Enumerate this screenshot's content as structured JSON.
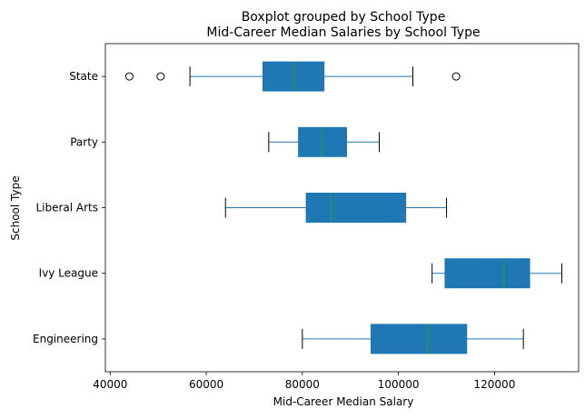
{
  "chart_data": {
    "type": "boxplot",
    "orientation": "horizontal",
    "suptitle": "Boxplot grouped by School Type",
    "title": "Mid-Career Median Salaries by School Type",
    "xlabel": "Mid-Career Median Salary",
    "ylabel": "School Type",
    "xlim": [
      39000,
      137500
    ],
    "xticks": [
      40000,
      60000,
      80000,
      100000,
      120000
    ],
    "xtick_labels": [
      "40000",
      "60000",
      "80000",
      "100000",
      "120000"
    ],
    "grid": false,
    "colors": {
      "box": "#1f77b4",
      "median": "#2ca02c",
      "whisker": "#1f77b4",
      "cap": "#000000",
      "outlier": "#000000"
    },
    "categories": [
      "Engineering",
      "Ivy League",
      "Liberal Arts",
      "Party",
      "State"
    ],
    "boxes": [
      {
        "name": "Engineering",
        "whislo": 80000,
        "q1": 94300,
        "median": 106000,
        "q3": 114200,
        "whishi": 126000,
        "outliers": []
      },
      {
        "name": "Ivy League",
        "whislo": 107000,
        "q1": 109700,
        "median": 122000,
        "q3": 127300,
        "whishi": 134000,
        "outliers": []
      },
      {
        "name": "Liberal Arts",
        "whislo": 64000,
        "q1": 80800,
        "median": 86000,
        "q3": 101500,
        "whishi": 110000,
        "outliers": []
      },
      {
        "name": "Party",
        "whislo": 73000,
        "q1": 79200,
        "median": 84000,
        "q3": 89200,
        "whishi": 96000,
        "outliers": []
      },
      {
        "name": "State",
        "whislo": 56600,
        "q1": 71800,
        "median": 78300,
        "q3": 84500,
        "whishi": 103000,
        "outliers": [
          44000,
          50500,
          112000
        ]
      }
    ]
  }
}
